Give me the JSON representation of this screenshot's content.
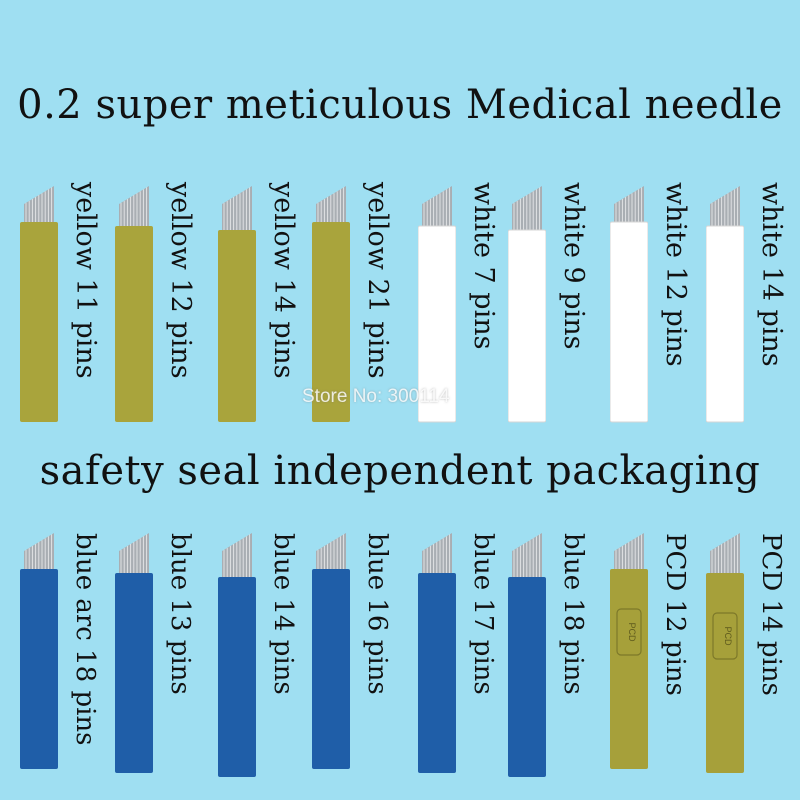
{
  "heading": "0.2 super meticulous Medical needle",
  "subheading": "safety seal independent packaging",
  "watermark": "Store No: 300114",
  "colors": {
    "background": "#9fdff2",
    "yellow": "#a9a43c",
    "white": "#ffffff",
    "blue": "#1f5ea8",
    "pcd": "#a6a03a",
    "blade": "#a9aeb3"
  },
  "needles_top": [
    {
      "label": "yellow 11 pins",
      "color": "yellow",
      "icon": "yellow-needle-icon"
    },
    {
      "label": "yellow 12 pins",
      "color": "yellow",
      "icon": "yellow-needle-icon"
    },
    {
      "label": "yellow 14 pins",
      "color": "yellow",
      "icon": "yellow-needle-icon"
    },
    {
      "label": "yellow 21 pins",
      "color": "yellow",
      "icon": "yellow-needle-icon"
    },
    {
      "label": "white 7 pins",
      "color": "white",
      "icon": "white-needle-icon"
    },
    {
      "label": "white 9 pins",
      "color": "white",
      "icon": "white-needle-icon"
    },
    {
      "label": "white 12 pins",
      "color": "white",
      "icon": "white-needle-icon"
    },
    {
      "label": "white 14 pins",
      "color": "white",
      "icon": "white-needle-icon"
    }
  ],
  "needles_bottom": [
    {
      "label": "blue arc 18 pins",
      "color": "blue",
      "icon": "blue-needle-icon"
    },
    {
      "label": "blue 13 pins",
      "color": "blue",
      "icon": "blue-needle-icon"
    },
    {
      "label": "blue 14 pins",
      "color": "blue",
      "icon": "blue-needle-icon"
    },
    {
      "label": "blue 16 pins",
      "color": "blue",
      "icon": "blue-needle-icon"
    },
    {
      "label": "blue 17 pins",
      "color": "blue",
      "icon": "blue-needle-icon"
    },
    {
      "label": "blue 18 pins",
      "color": "blue",
      "icon": "blue-needle-icon"
    },
    {
      "label": "PCD 12 pins",
      "color": "pcd",
      "icon": "pcd-needle-icon",
      "badge": "PCD"
    },
    {
      "label": "PCD 14 pins",
      "color": "pcd",
      "icon": "pcd-needle-icon",
      "badge": "PCD"
    }
  ]
}
